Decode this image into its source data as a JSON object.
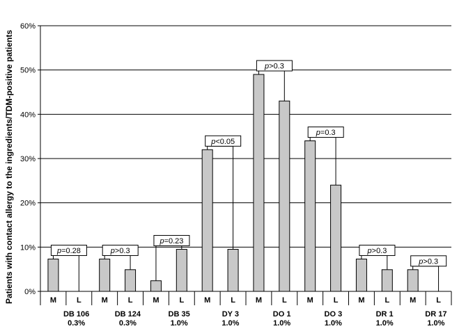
{
  "chart_data": {
    "type": "bar",
    "title": "",
    "xlabel": "",
    "ylabel": "Patients with contact allergy to the ingredients/TDM-positive patients",
    "ylim": [
      0,
      60
    ],
    "yticks": [
      "0%",
      "10%",
      "20%",
      "30%",
      "40%",
      "50%",
      "60%"
    ],
    "grid": true,
    "bar_color": "#c8c8c8",
    "groups": [
      {
        "name": "DB 106",
        "conc": "0.3%",
        "M": 7.3,
        "L": 0,
        "p": "=0.28"
      },
      {
        "name": "DB 124",
        "conc": "0.3%",
        "M": 7.3,
        "L": 4.9,
        "p": ">0.3"
      },
      {
        "name": "DB 35",
        "conc": "1.0%",
        "M": 2.4,
        "L": 9.5,
        "p": "=0.23"
      },
      {
        "name": "DY 3",
        "conc": "1.0%",
        "M": 32,
        "L": 9.5,
        "p": "<0.05"
      },
      {
        "name": "DO 1",
        "conc": "1.0%",
        "M": 49,
        "L": 43,
        "p": ">0.3"
      },
      {
        "name": "DO 3",
        "conc": "1.0%",
        "M": 34,
        "L": 24,
        "p": "=0.3"
      },
      {
        "name": "DR 1",
        "conc": "1.0%",
        "M": 7.3,
        "L": 4.9,
        "p": ">0.3"
      },
      {
        "name": "DR 17",
        "conc": "1.0%",
        "M": 4.9,
        "L": 0,
        "p": ">0.3"
      }
    ],
    "bar_labels": [
      "M",
      "L"
    ],
    "p_symbol": "p"
  }
}
